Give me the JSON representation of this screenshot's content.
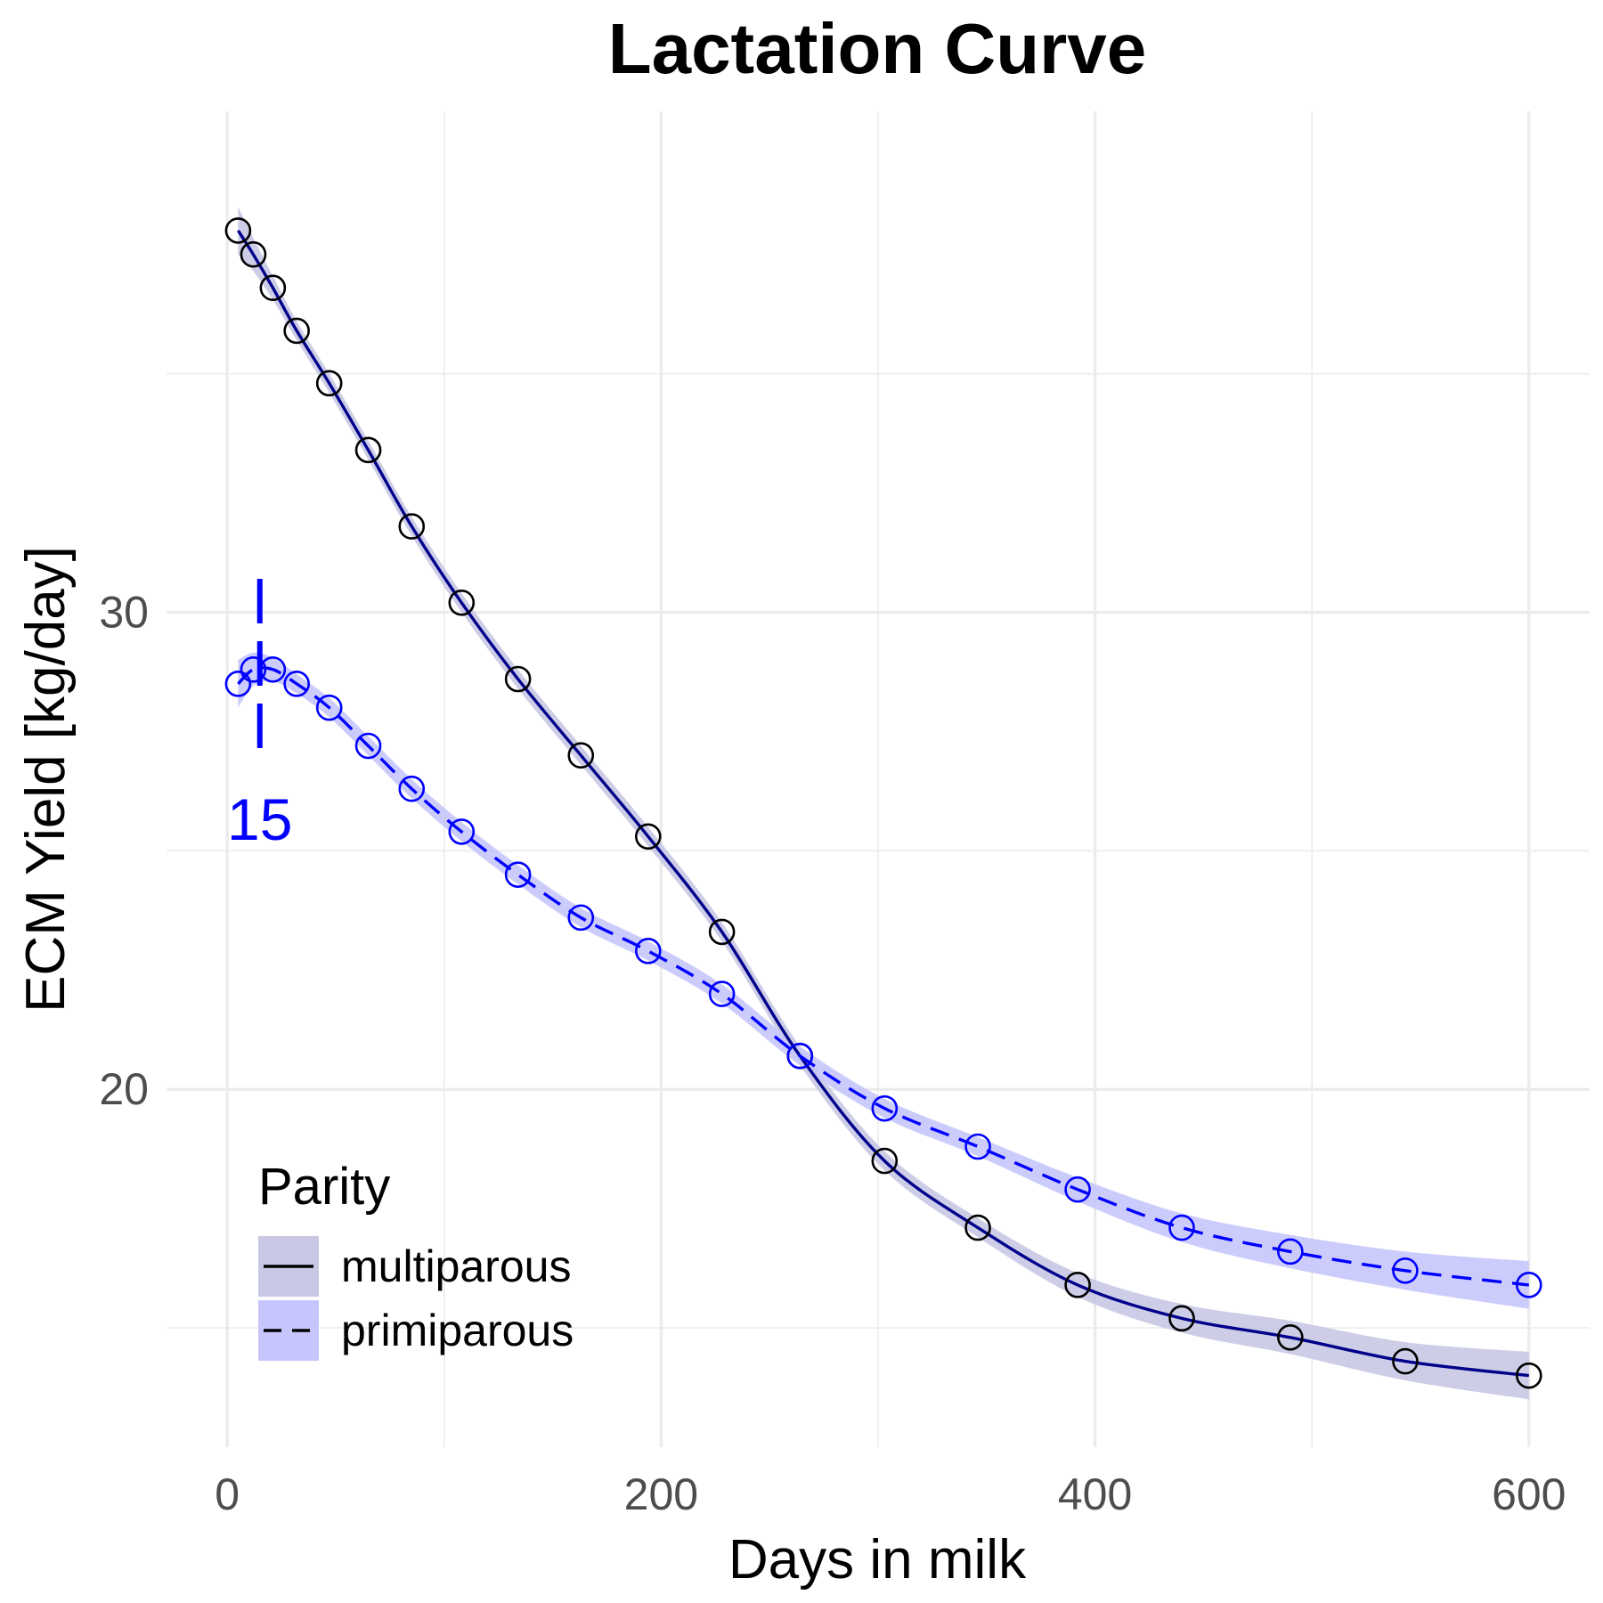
{
  "chart_data": {
    "type": "line",
    "title": "Lactation Curve",
    "xlabel": "Days in milk",
    "ylabel": "ECM Yield [kg/day]",
    "xlim": [
      -28,
      628
    ],
    "ylim": [
      12.5,
      40.5
    ],
    "x_ticks": [
      0,
      200,
      400,
      600
    ],
    "y_ticks": [
      20,
      30
    ],
    "grid": true,
    "legend": {
      "title": "Parity",
      "position": "bottom-left",
      "entries": [
        "multiparous",
        "primiparous"
      ]
    },
    "series": [
      {
        "name": "multiparous",
        "line_style": "solid",
        "color": "#00008b",
        "band_color": "#c8c8e4",
        "x": [
          5,
          12,
          21,
          32,
          47,
          65,
          85,
          108,
          134,
          163,
          194,
          228,
          264,
          303,
          346,
          392,
          440,
          490,
          543,
          600
        ],
        "y": [
          38.0,
          37.5,
          36.8,
          35.9,
          34.8,
          33.4,
          31.8,
          30.2,
          28.6,
          27.0,
          25.3,
          23.3,
          20.7,
          18.5,
          17.1,
          15.9,
          15.2,
          14.8,
          14.3,
          14.0
        ],
        "band": [
          0.5,
          0.35,
          0.25,
          0.2,
          0.2,
          0.2,
          0.2,
          0.2,
          0.2,
          0.2,
          0.2,
          0.2,
          0.2,
          0.2,
          0.2,
          0.25,
          0.3,
          0.35,
          0.4,
          0.5
        ]
      },
      {
        "name": "primiparous",
        "line_style": "dashed",
        "color": "#0000ff",
        "band_color": "#c6c6fc",
        "x": [
          5,
          12,
          21,
          32,
          47,
          65,
          85,
          108,
          134,
          163,
          194,
          228,
          264,
          303,
          346,
          392,
          440,
          490,
          543,
          600
        ],
        "y": [
          28.5,
          28.8,
          28.8,
          28.5,
          28.0,
          27.2,
          26.3,
          25.4,
          24.5,
          23.6,
          22.9,
          22.0,
          20.7,
          19.6,
          18.8,
          17.9,
          17.1,
          16.6,
          16.2,
          15.9
        ],
        "band": [
          0.5,
          0.35,
          0.25,
          0.2,
          0.2,
          0.2,
          0.2,
          0.2,
          0.2,
          0.2,
          0.2,
          0.2,
          0.2,
          0.2,
          0.2,
          0.25,
          0.3,
          0.35,
          0.4,
          0.5
        ]
      }
    ],
    "annotations": [
      {
        "type": "vline",
        "x": 15,
        "y_range": [
          27.0,
          30.7
        ],
        "color": "#0000ff",
        "label": "15"
      }
    ]
  }
}
